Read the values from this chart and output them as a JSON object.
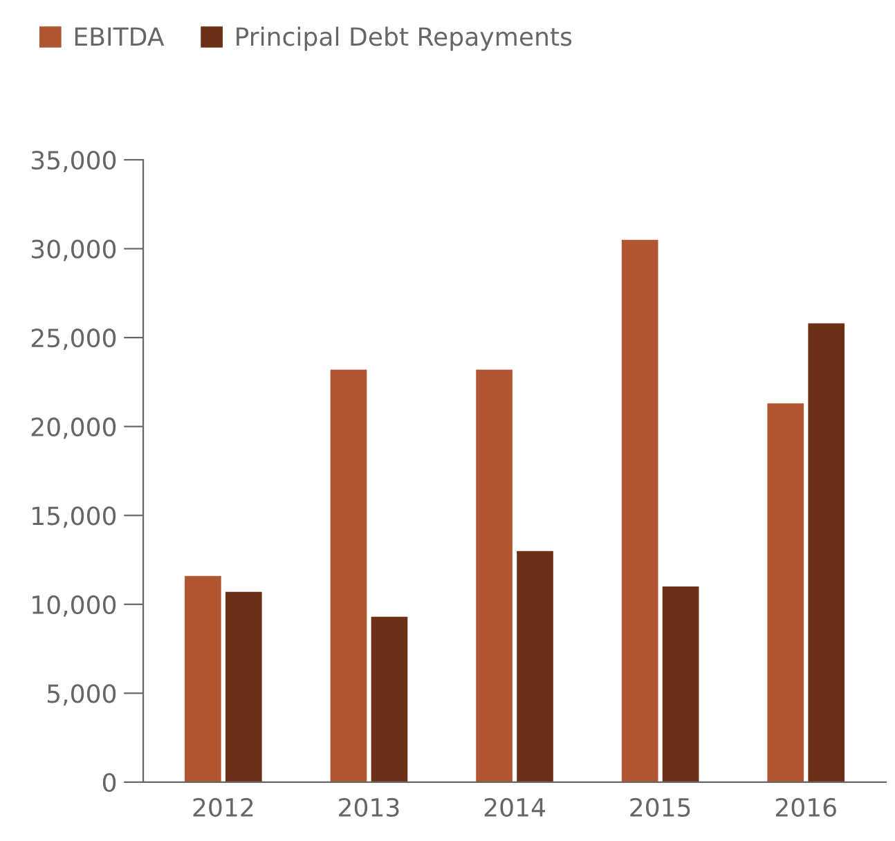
{
  "chart_data": {
    "type": "bar",
    "categories": [
      "2012",
      "2013",
      "2014",
      "2015",
      "2016"
    ],
    "series": [
      {
        "name": "EBITDA",
        "color": "#b05632",
        "values": [
          11600,
          23200,
          23200,
          30500,
          21300
        ]
      },
      {
        "name": "Principal Debt Repayments",
        "color": "#6b3015",
        "values": [
          10700,
          9300,
          13000,
          11000,
          25800
        ]
      }
    ],
    "ylim": [
      0,
      35000
    ],
    "yticks": [
      0,
      {
        "value": 5000,
        "label": "5,000"
      },
      {
        "value": 10000,
        "label": "10,000"
      },
      {
        "value": 15000,
        "label": "15,000"
      },
      {
        "value": 20000,
        "label": "20,000"
      },
      {
        "value": 25000,
        "label": "25,000"
      },
      {
        "value": 30000,
        "label": "30,000"
      },
      {
        "value": 35000,
        "label": "35,000"
      }
    ],
    "grid": false,
    "legend": "top left"
  }
}
